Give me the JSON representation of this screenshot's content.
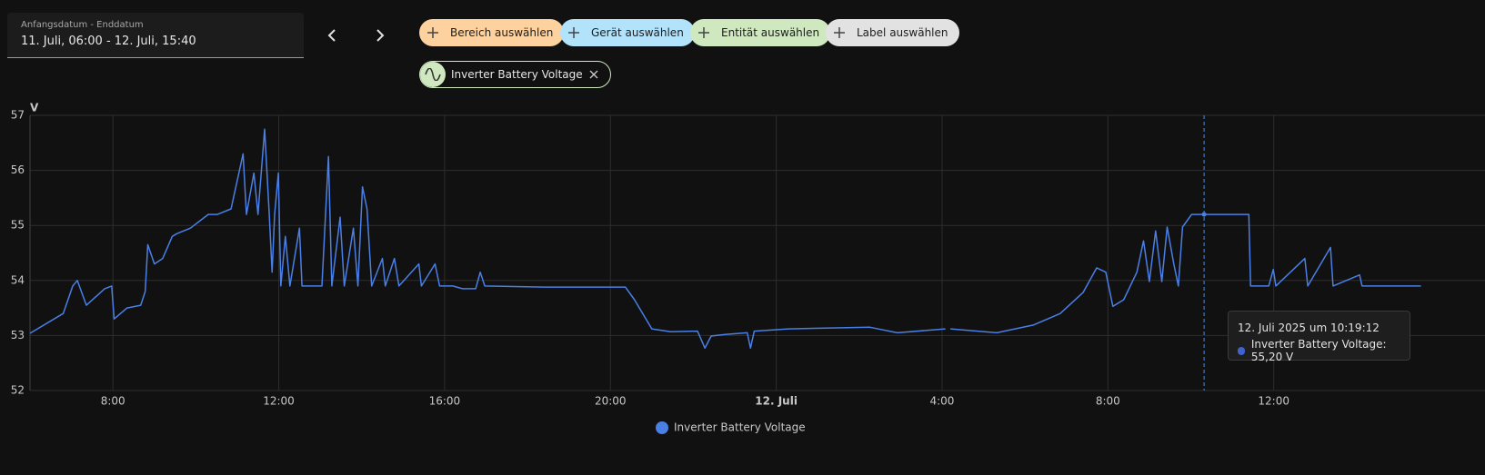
{
  "ui": {
    "date_label": "Anfangsdatum - Enddatum",
    "date_value": "11. Juli, 06:00 - 12. Juli, 15:40",
    "filters": [
      "Bereich auswählen",
      "Gerät auswählen",
      "Entität auswählen",
      "Label auswählen"
    ],
    "entity_chip": "Inverter Battery Voltage"
  },
  "chart_data": {
    "type": "line",
    "y_label": "V",
    "ylim": [
      52,
      57
    ],
    "yticks": [
      52,
      53,
      54,
      55,
      56,
      57
    ],
    "xlim": [
      0,
      33.67
    ],
    "xticks": [
      {
        "value": 2,
        "label": "8:00"
      },
      {
        "value": 6,
        "label": "12:00"
      },
      {
        "value": 10,
        "label": "16:00"
      },
      {
        "value": 14,
        "label": "20:00"
      },
      {
        "value": 18,
        "label": "12. Juli"
      },
      {
        "value": 22,
        "label": "4:00"
      },
      {
        "value": 26,
        "label": "8:00"
      },
      {
        "value": 30,
        "label": "12:00"
      }
    ],
    "grid": true,
    "x": [
      0,
      0.8,
      1.03,
      1.14,
      1.36,
      1.8,
      1.97,
      2.03,
      2.34,
      2.67,
      2.78,
      2.84,
      3.0,
      3.2,
      3.43,
      3.54,
      3.87,
      4.3,
      4.52,
      4.85,
      5.14,
      5.22,
      5.4,
      5.5,
      5.66,
      5.77,
      5.84,
      5.9,
      5.99,
      6.05,
      6.16,
      6.27,
      6.5,
      6.56,
      7.04,
      7.2,
      7.28,
      7.48,
      7.58,
      7.8,
      7.91,
      8.02,
      8.13,
      8.24,
      8.5,
      8.57,
      8.79,
      8.9,
      9.38,
      9.44,
      9.77,
      9.88,
      10.2,
      10.43,
      10.75,
      10.86,
      10.97,
      12.4,
      14.36,
      14.58,
      15.0,
      15.45,
      16.1,
      16.28,
      16.43,
      16.77,
      17.3,
      17.38,
      17.47,
      18.3,
      20.26,
      20.92,
      22.08,
      22.14,
      22.2,
      23.32,
      24.2,
      24.85,
      25.4,
      25.73,
      25.95,
      26.12,
      26.38,
      26.7,
      26.86,
      27.0,
      27.15,
      27.3,
      27.43,
      27.59,
      27.7,
      27.8,
      28.02,
      28.24,
      29.4,
      29.44,
      29.88,
      29.99,
      30.05,
      30.75,
      30.82,
      31.37,
      31.43,
      32.07,
      32.13,
      33.55
    ],
    "series": [
      {
        "name": "Inverter Battery Voltage",
        "color": "#4a7fe6",
        "values": [
          53.04,
          53.4,
          53.9,
          54.0,
          53.55,
          53.85,
          53.9,
          53.3,
          53.5,
          53.55,
          53.8,
          54.65,
          54.3,
          54.4,
          54.8,
          54.85,
          54.95,
          55.2,
          55.2,
          55.3,
          56.3,
          55.2,
          55.95,
          55.2,
          56.75,
          55.2,
          54.15,
          55.2,
          55.95,
          53.9,
          54.8,
          53.9,
          54.95,
          53.9,
          53.9,
          56.25,
          53.9,
          55.15,
          53.9,
          54.95,
          53.9,
          55.7,
          55.3,
          53.9,
          54.4,
          53.9,
          54.4,
          53.9,
          54.3,
          53.9,
          54.3,
          53.9,
          53.9,
          53.85,
          53.85,
          54.15,
          53.9,
          53.88,
          53.88,
          53.65,
          53.12,
          53.07,
          53.08,
          52.77,
          52.99,
          53.02,
          53.05,
          52.77,
          53.08,
          53.12,
          53.15,
          53.05,
          53.12,
          null,
          53.12,
          53.05,
          53.19,
          53.4,
          53.78,
          54.23,
          54.15,
          53.53,
          53.65,
          54.15,
          54.72,
          53.98,
          54.9,
          53.98,
          54.97,
          54.3,
          53.9,
          54.97,
          55.2,
          55.2,
          55.2,
          53.9,
          53.9,
          54.2,
          53.9,
          54.4,
          53.9,
          54.6,
          53.9,
          54.1,
          53.9,
          53.9
        ]
      }
    ],
    "tooltip": {
      "title": "12. Juli 2025 um 10:19:12",
      "text": "Inverter Battery Voltage: 55,20 V",
      "x": 28.32,
      "value": 55.2
    }
  }
}
